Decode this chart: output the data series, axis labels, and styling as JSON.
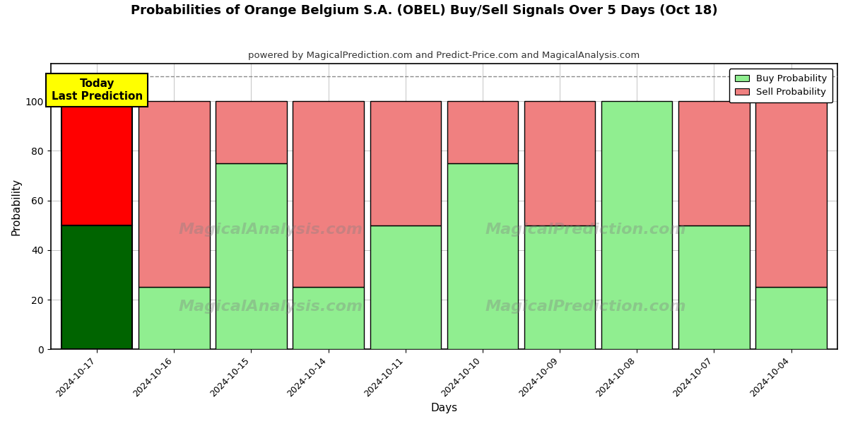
{
  "title": "Probabilities of Orange Belgium S.A. (OBEL) Buy/Sell Signals Over 5 Days (Oct 18)",
  "subtitle": "powered by MagicalPrediction.com and Predict-Price.com and MagicalAnalysis.com",
  "xlabel": "Days",
  "ylabel": "Probability",
  "dates": [
    "2024-10-17",
    "2024-10-16",
    "2024-10-15",
    "2024-10-14",
    "2024-10-11",
    "2024-10-10",
    "2024-10-09",
    "2024-10-08",
    "2024-10-07",
    "2024-10-04"
  ],
  "buy_values": [
    50,
    25,
    75,
    25,
    50,
    75,
    50,
    100,
    50,
    25
  ],
  "sell_values": [
    50,
    75,
    25,
    75,
    50,
    25,
    50,
    0,
    50,
    75
  ],
  "today_index": 0,
  "buy_color_today": "#006400",
  "sell_color_today": "#FF0000",
  "buy_color_normal": "#90EE90",
  "sell_color_normal": "#F08080",
  "today_label_bg": "#FFFF00",
  "today_label_text": "Today\nLast Prediction",
  "dashed_line_y": 110,
  "ylim": [
    0,
    115
  ],
  "yticks": [
    0,
    20,
    40,
    60,
    80,
    100
  ],
  "legend_buy": "Buy Probability",
  "legend_sell": "Sell Probability",
  "watermark_line1": "MagicalAnalysis.com",
  "watermark_line2": "MagicalPrediction.com",
  "background_color": "#ffffff",
  "grid_color": "#aaaaaa",
  "bar_width": 0.92
}
